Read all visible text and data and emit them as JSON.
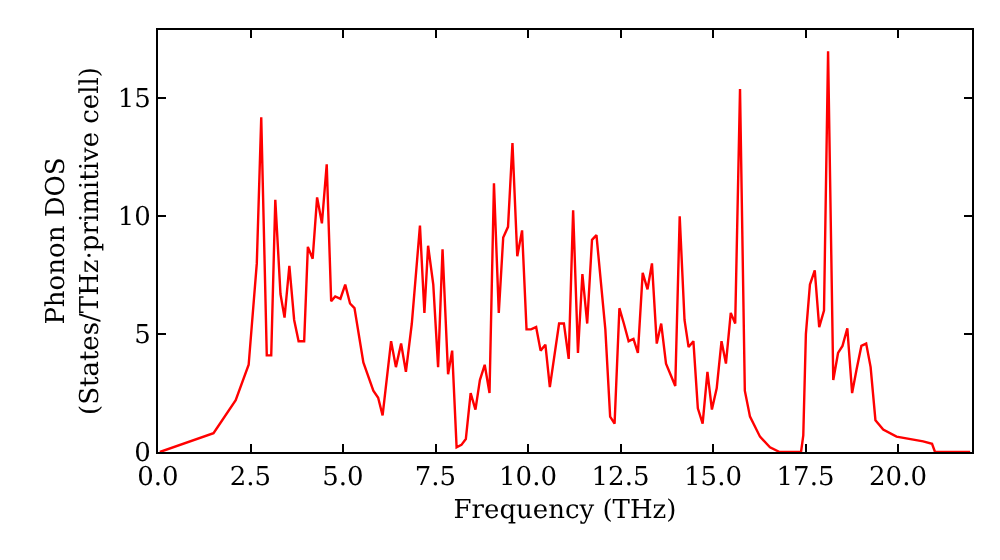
{
  "chart_data": {
    "type": "line",
    "xlabel": "Frequency (THz)",
    "ylabel": "Phonon DOS\n(States/THz·primitive cell)",
    "xlim": [
      0,
      22
    ],
    "xticks": [
      {
        "value": 0,
        "label": "0.0"
      },
      {
        "value": 2.5,
        "label": "2.5"
      },
      {
        "value": 5,
        "label": "5.0"
      },
      {
        "value": 7.5,
        "label": "7.5"
      },
      {
        "value": 10,
        "label": "10.0"
      },
      {
        "value": 12.5,
        "label": "12.5"
      },
      {
        "value": 15,
        "label": "15.0"
      },
      {
        "value": 17.5,
        "label": "17.5"
      },
      {
        "value": 20,
        "label": "20.0"
      }
    ],
    "ylim": [
      0,
      17.9
    ],
    "yticks": [
      0,
      5,
      10,
      15
    ],
    "line_style": "solid",
    "marker": "none",
    "series": [
      {
        "color": "#ff0000",
        "x": [
          0.05,
          1.5,
          2.1,
          2.45,
          2.67,
          2.79,
          2.94,
          3.06,
          3.17,
          3.31,
          3.42,
          3.55,
          3.68,
          3.8,
          3.95,
          4.05,
          4.18,
          4.3,
          4.43,
          4.56,
          4.68,
          4.79,
          4.93,
          5.06,
          5.19,
          5.31,
          5.55,
          5.82,
          5.95,
          6.07,
          6.3,
          6.43,
          6.57,
          6.7,
          6.86,
          7.08,
          7.2,
          7.3,
          7.44,
          7.57,
          7.69,
          7.84,
          7.95,
          8.07,
          8.2,
          8.32,
          8.45,
          8.58,
          8.7,
          8.83,
          8.96,
          9.08,
          9.21,
          9.33,
          9.46,
          9.58,
          9.71,
          9.84,
          9.96,
          10.08,
          10.22,
          10.34,
          10.47,
          10.59,
          10.84,
          10.97,
          11.1,
          11.22,
          11.35,
          11.47,
          11.6,
          11.73,
          11.85,
          12.09,
          12.22,
          12.34,
          12.47,
          12.59,
          12.72,
          12.85,
          12.97,
          13.1,
          13.23,
          13.35,
          13.48,
          13.6,
          13.73,
          13.98,
          14.1,
          14.23,
          14.34,
          14.47,
          14.59,
          14.72,
          14.85,
          14.97,
          15.1,
          15.23,
          15.35,
          15.48,
          15.6,
          15.73,
          15.86,
          16.0,
          16.27,
          16.54,
          16.8,
          17.38,
          17.44,
          17.51,
          17.62,
          17.75,
          17.87,
          18.0,
          18.11,
          18.25,
          18.38,
          18.5,
          18.63,
          18.76,
          18.88,
          19.01,
          19.14,
          19.26,
          19.39,
          19.6,
          19.96,
          20.68,
          20.92,
          21.0,
          21.95
        ],
        "values": [
          0,
          0.8,
          2.2,
          3.7,
          8.0,
          14.2,
          4.1,
          4.1,
          10.7,
          6.7,
          5.7,
          7.9,
          5.6,
          4.7,
          4.7,
          8.7,
          8.2,
          10.8,
          9.7,
          12.2,
          6.4,
          6.6,
          6.5,
          7.1,
          6.3,
          6.1,
          3.8,
          2.6,
          2.3,
          1.55,
          4.7,
          3.6,
          4.6,
          3.4,
          5.45,
          9.6,
          5.9,
          8.75,
          7.1,
          3.6,
          8.6,
          3.3,
          4.3,
          0.2,
          0.3,
          0.55,
          2.5,
          1.8,
          3.05,
          3.7,
          2.5,
          11.4,
          5.9,
          9.1,
          9.55,
          13.1,
          8.3,
          9.4,
          5.2,
          5.2,
          5.3,
          4.3,
          4.55,
          2.75,
          5.45,
          5.45,
          3.95,
          10.25,
          4.2,
          7.55,
          5.45,
          9.0,
          9.2,
          5.2,
          1.5,
          1.2,
          6.1,
          5.45,
          4.7,
          4.8,
          4.2,
          7.6,
          6.9,
          8.0,
          4.6,
          5.45,
          3.75,
          2.8,
          10.0,
          5.6,
          4.45,
          4.7,
          1.85,
          1.2,
          3.4,
          1.8,
          2.7,
          4.7,
          3.75,
          5.9,
          5.45,
          15.4,
          2.6,
          1.5,
          0.65,
          0.2,
          0,
          0,
          0.7,
          5.0,
          7.1,
          7.7,
          5.3,
          6.0,
          17.0,
          3.05,
          4.2,
          4.5,
          5.25,
          2.5,
          3.5,
          4.5,
          4.6,
          3.6,
          1.35,
          0.95,
          0.65,
          0.45,
          0.35,
          0,
          0
        ]
      }
    ]
  }
}
